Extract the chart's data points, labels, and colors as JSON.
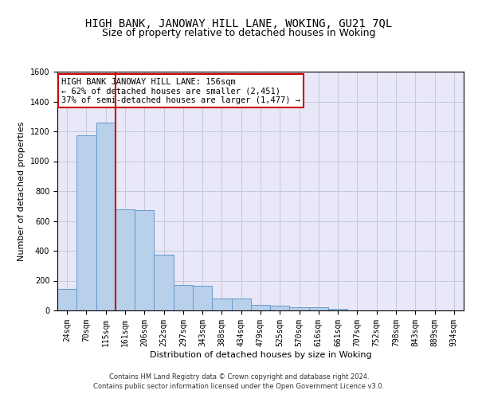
{
  "title": "HIGH BANK, JANOWAY HILL LANE, WOKING, GU21 7QL",
  "subtitle": "Size of property relative to detached houses in Woking",
  "xlabel": "Distribution of detached houses by size in Woking",
  "ylabel": "Number of detached properties",
  "categories": [
    "24sqm",
    "70sqm",
    "115sqm",
    "161sqm",
    "206sqm",
    "252sqm",
    "297sqm",
    "343sqm",
    "388sqm",
    "434sqm",
    "479sqm",
    "525sqm",
    "570sqm",
    "616sqm",
    "661sqm",
    "707sqm",
    "752sqm",
    "798sqm",
    "843sqm",
    "889sqm",
    "934sqm"
  ],
  "bar_heights": [
    145,
    1175,
    1260,
    680,
    670,
    375,
    170,
    165,
    80,
    80,
    35,
    30,
    20,
    20,
    10,
    0,
    0,
    0,
    0,
    0,
    0
  ],
  "bar_color": "#b8d0ea",
  "bar_edge_color": "#6699cc",
  "ylim": [
    0,
    1600
  ],
  "yticks": [
    0,
    200,
    400,
    600,
    800,
    1000,
    1200,
    1400,
    1600
  ],
  "grid_color": "#c8c8dc",
  "background_color": "#e8e8f8",
  "red_line_x": 2.5,
  "annotation_line1": "HIGH BANK JANOWAY HILL LANE: 156sqm",
  "annotation_line2": "← 62% of detached houses are smaller (2,451)",
  "annotation_line3": "37% of semi-detached houses are larger (1,477) →",
  "annotation_box_color": "#ffffff",
  "annotation_border_color": "#cc0000",
  "footer_line1": "Contains HM Land Registry data © Crown copyright and database right 2024.",
  "footer_line2": "Contains public sector information licensed under the Open Government Licence v3.0.",
  "title_fontsize": 10,
  "subtitle_fontsize": 9,
  "axis_label_fontsize": 8,
  "tick_fontsize": 7,
  "annotation_fontsize": 7.5,
  "footer_fontsize": 6
}
